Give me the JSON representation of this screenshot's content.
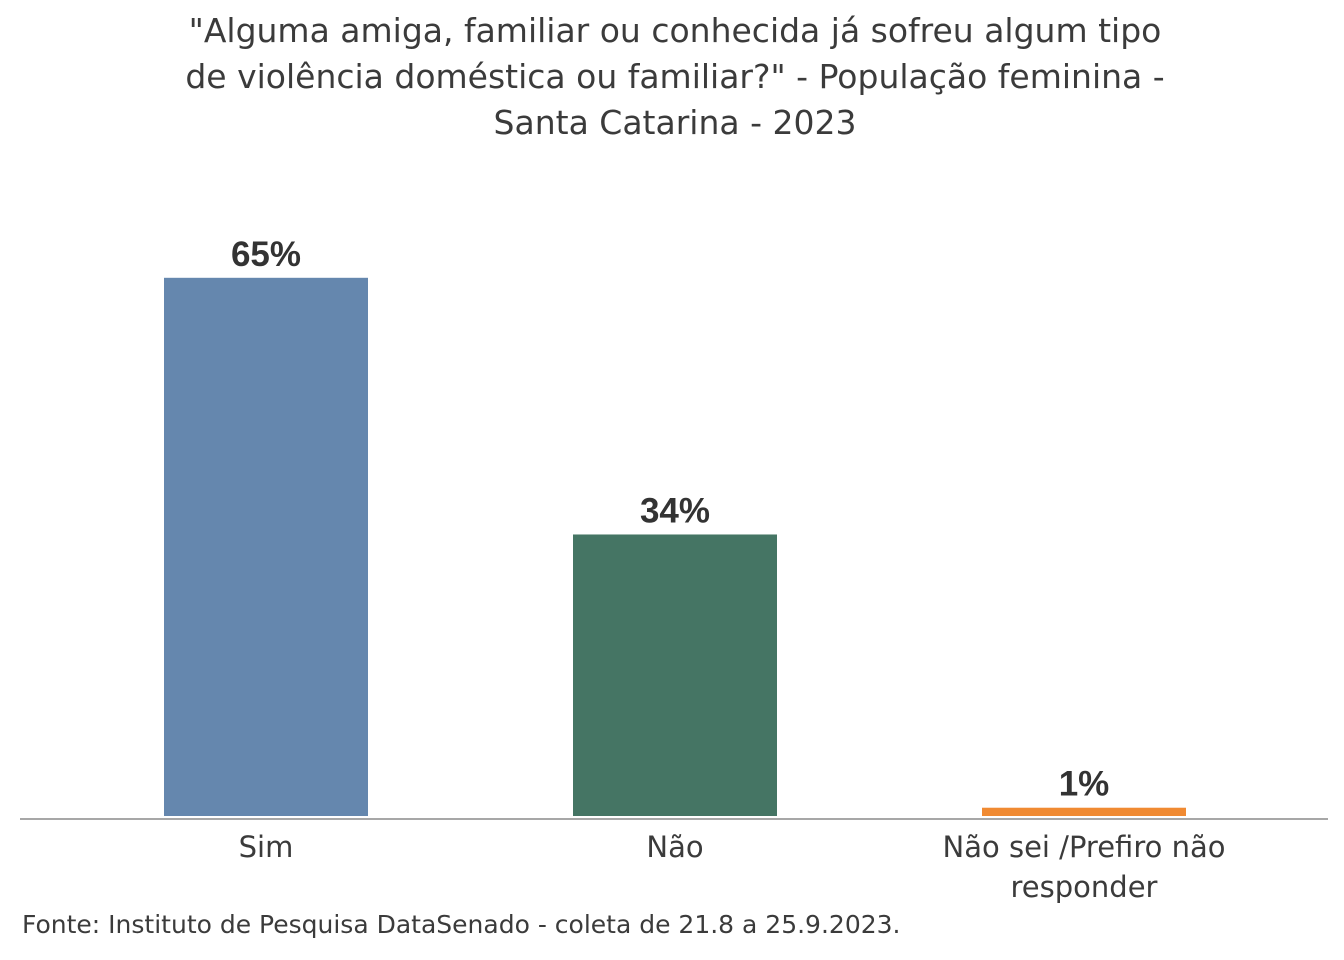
{
  "chart_data": {
    "type": "bar",
    "title": [
      "\"Alguma amiga, familiar ou conhecida já sofreu algum tipo",
      "de violência doméstica ou familiar?\" - População feminina -",
      "Santa Catarina - 2023"
    ],
    "categories": [
      [
        "Sim"
      ],
      [
        "Não"
      ],
      [
        "Não sei /Prefiro não",
        "responder"
      ]
    ],
    "values": [
      65,
      34,
      1
    ],
    "value_labels": [
      "65%",
      "34%",
      "1%"
    ],
    "colors": [
      "#6587ae",
      "#457564",
      "#f08a32"
    ],
    "ylim": [
      0,
      100
    ],
    "grid": false,
    "legend": "none"
  },
  "source": "Fonte: Instituto de Pesquisa DataSenado - coleta de 21.8 a 25.9.2023."
}
